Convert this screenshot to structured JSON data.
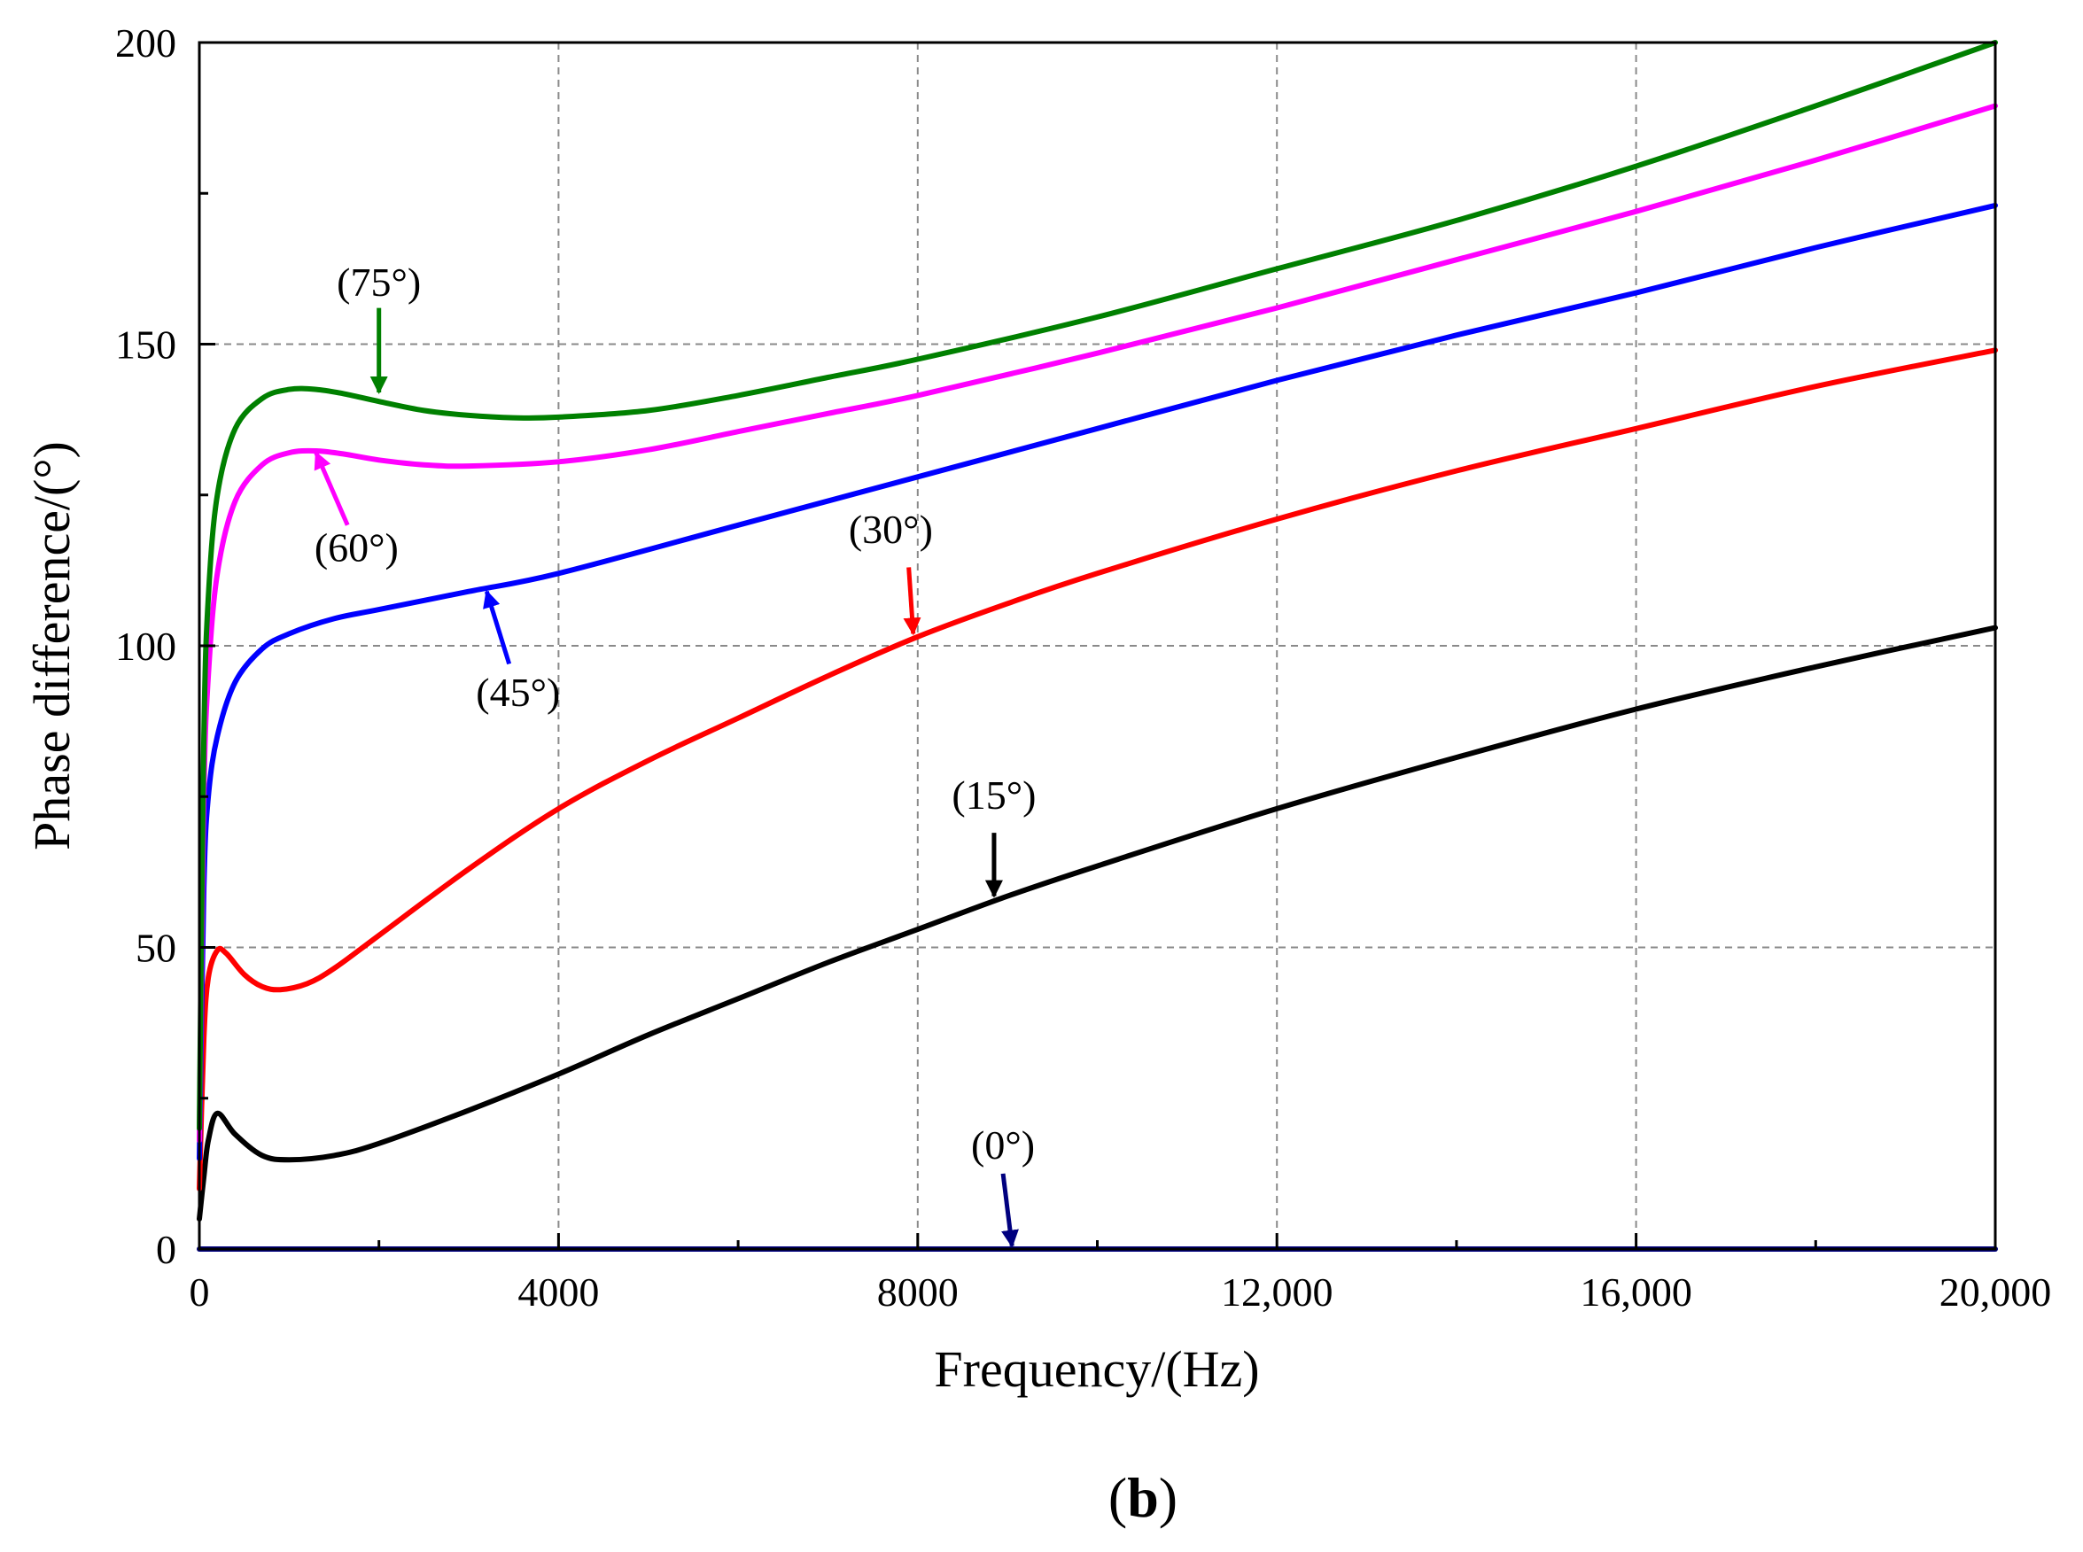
{
  "chart_data": {
    "type": "line",
    "title": "",
    "xlabel": "Frequency/(Hz)",
    "ylabel": "Phase difference/(°)",
    "xlim": [
      0,
      20000
    ],
    "ylim": [
      0,
      200
    ],
    "grid": true,
    "panel_label": "b",
    "x_ticks": [
      {
        "value": 0,
        "label": "0"
      },
      {
        "value": 4000,
        "label": "4000"
      },
      {
        "value": 8000,
        "label": "8000"
      },
      {
        "value": 12000,
        "label": "12,000"
      },
      {
        "value": 16000,
        "label": "16,000"
      },
      {
        "value": 20000,
        "label": "20,000"
      }
    ],
    "y_ticks": [
      {
        "value": 0,
        "label": "0"
      },
      {
        "value": 50,
        "label": "50"
      },
      {
        "value": 100,
        "label": "100"
      },
      {
        "value": 150,
        "label": "150"
      },
      {
        "value": 200,
        "label": "200"
      }
    ],
    "series": [
      {
        "name": "0°",
        "label": "(0°)",
        "color": "#00007f",
        "x": [
          0,
          20000
        ],
        "y": [
          0,
          0
        ]
      },
      {
        "name": "15°",
        "label": "(15°)",
        "color": "#000000",
        "x": [
          0,
          50,
          100,
          200,
          400,
          700,
          1000,
          1500,
          2000,
          3000,
          4000,
          5000,
          6000,
          7000,
          8000,
          9000,
          10000,
          12000,
          14000,
          16000,
          18000,
          20000
        ],
        "y": [
          5,
          12,
          18,
          22.5,
          19,
          15.5,
          14.8,
          15.5,
          17.5,
          23,
          29,
          35.5,
          41.5,
          47.5,
          53,
          58.5,
          63.5,
          73,
          81.5,
          89.5,
          96.5,
          103
        ]
      },
      {
        "name": "30°",
        "label": "(30°)",
        "color": "#ff0000",
        "x": [
          0,
          50,
          100,
          200,
          300,
          500,
          700,
          900,
          1200,
          1500,
          2000,
          3000,
          4000,
          5000,
          6000,
          7000,
          8000,
          9000,
          10000,
          12000,
          14000,
          16000,
          18000,
          20000
        ],
        "y": [
          10,
          35,
          45,
          49.5,
          49,
          45.5,
          43.5,
          43,
          44,
          46.5,
          52,
          63,
          73,
          81,
          88,
          95,
          101.5,
          107,
          112,
          121,
          129,
          136,
          143,
          149
        ]
      },
      {
        "name": "45°",
        "label": "(45°)",
        "color": "#0000ff",
        "x": [
          0,
          50,
          100,
          200,
          400,
          700,
          1000,
          1500,
          2000,
          3000,
          4000,
          6000,
          8000,
          10000,
          12000,
          14000,
          16000,
          18000,
          20000
        ],
        "y": [
          15,
          60,
          75,
          85,
          94,
          99.5,
          102,
          104.5,
          106,
          109,
          112,
          120,
          128,
          136,
          144,
          151.5,
          158.5,
          166,
          173
        ]
      },
      {
        "name": "60°",
        "label": "(60°)",
        "color": "#ff00ff",
        "x": [
          0,
          50,
          100,
          200,
          400,
          700,
          1000,
          1300,
          1600,
          2000,
          2500,
          3000,
          4000,
          5000,
          6000,
          7000,
          8000,
          10000,
          12000,
          14000,
          16000,
          18000,
          20000
        ],
        "y": [
          18,
          75,
          95,
          112,
          124,
          130,
          132,
          132.3,
          131.8,
          130.8,
          130,
          129.8,
          130.5,
          132.5,
          135.5,
          138.5,
          141.5,
          148.5,
          156,
          164,
          172,
          180.5,
          189.5
        ]
      },
      {
        "name": "75°",
        "label": "(75°)",
        "color": "#008000",
        "x": [
          0,
          50,
          100,
          200,
          400,
          700,
          1000,
          1300,
          1600,
          2000,
          2500,
          3000,
          3500,
          4000,
          5000,
          6000,
          7000,
          8000,
          10000,
          12000,
          14000,
          16000,
          18000,
          20000
        ],
        "y": [
          20,
          85,
          108,
          125,
          136,
          141,
          142.5,
          142.5,
          141.8,
          140.5,
          139,
          138.2,
          137.8,
          137.9,
          139,
          141.5,
          144.5,
          147.5,
          154.5,
          162.5,
          170.5,
          179.5,
          189.5,
          200
        ]
      }
    ],
    "annotations": [
      {
        "text": "(75°)",
        "series": "75°"
      },
      {
        "text": "(60°)",
        "series": "60°"
      },
      {
        "text": "(45°)",
        "series": "45°"
      },
      {
        "text": "(30°)",
        "series": "30°"
      },
      {
        "text": "(15°)",
        "series": "15°"
      },
      {
        "text": "(0°)",
        "series": "0°"
      }
    ]
  }
}
